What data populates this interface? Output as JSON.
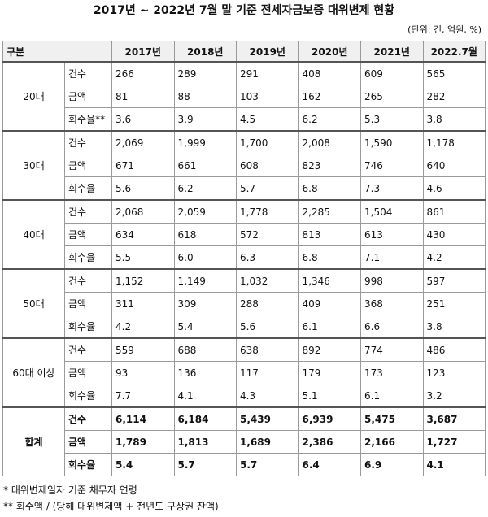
{
  "header": {
    "title": "2017년 ~ 2022년 7월 말 기준 전세자금보증 대위변제 현황",
    "unit": "(단위: 건, 억원, %)"
  },
  "table": {
    "columns": [
      "구분",
      "2017년",
      "2018년",
      "2019년",
      "2020년",
      "2021년",
      "2022.7월"
    ],
    "groups": [
      {
        "name": "20대",
        "rows": [
          {
            "label": "건수",
            "values": [
              "266",
              "289",
              "291",
              "408",
              "609",
              "565"
            ]
          },
          {
            "label": "금액",
            "values": [
              "81",
              "88",
              "103",
              "162",
              "265",
              "282"
            ]
          },
          {
            "label": "회수율**",
            "values": [
              "3.6",
              "3.9",
              "4.5",
              "6.2",
              "5.3",
              "3.8"
            ]
          }
        ]
      },
      {
        "name": "30대",
        "rows": [
          {
            "label": "건수",
            "values": [
              "2,069",
              "1,999",
              "1,700",
              "2,008",
              "1,590",
              "1,178"
            ]
          },
          {
            "label": "금액",
            "values": [
              "671",
              "661",
              "608",
              "823",
              "746",
              "640"
            ]
          },
          {
            "label": "회수율",
            "values": [
              "5.6",
              "6.2",
              "5.7",
              "6.8",
              "7.3",
              "4.6"
            ]
          }
        ]
      },
      {
        "name": "40대",
        "rows": [
          {
            "label": "건수",
            "values": [
              "2,068",
              "2,059",
              "1,778",
              "2,285",
              "1,504",
              "861"
            ]
          },
          {
            "label": "금액",
            "values": [
              "634",
              "618",
              "572",
              "813",
              "613",
              "430"
            ]
          },
          {
            "label": "회수율",
            "values": [
              "5.5",
              "6.0",
              "6.3",
              "6.8",
              "7.1",
              "4.2"
            ]
          }
        ]
      },
      {
        "name": "50대",
        "rows": [
          {
            "label": "건수",
            "values": [
              "1,152",
              "1,149",
              "1,032",
              "1,346",
              "998",
              "597"
            ]
          },
          {
            "label": "금액",
            "values": [
              "311",
              "309",
              "288",
              "409",
              "368",
              "251"
            ]
          },
          {
            "label": "회수율",
            "values": [
              "4.2",
              "5.4",
              "5.6",
              "6.1",
              "6.6",
              "3.8"
            ]
          }
        ]
      },
      {
        "name": "60대 이상",
        "rows": [
          {
            "label": "건수",
            "values": [
              "559",
              "688",
              "638",
              "892",
              "774",
              "486"
            ]
          },
          {
            "label": "금액",
            "values": [
              "93",
              "136",
              "117",
              "179",
              "173",
              "123"
            ]
          },
          {
            "label": "회수율",
            "values": [
              "7.7",
              "4.1",
              "4.3",
              "5.1",
              "6.1",
              "3.2"
            ]
          }
        ]
      },
      {
        "name": "합계",
        "rows": [
          {
            "label": "건수",
            "values": [
              "6,114",
              "6,184",
              "5,439",
              "6,939",
              "5,475",
              "3,687"
            ]
          },
          {
            "label": "금액",
            "values": [
              "1,789",
              "1,813",
              "1,689",
              "2,386",
              "2,166",
              "1,727"
            ]
          },
          {
            "label": "회수율",
            "values": [
              "5.4",
              "5.7",
              "5.7",
              "6.4",
              "6.9",
              "4.1"
            ]
          }
        ]
      }
    ]
  },
  "footnotes": [
    "* 대위변제일자 기준 채무자 연령",
    "** 회수액 / (당해 대위변제액 + 전년도 구상권 잔액)"
  ]
}
